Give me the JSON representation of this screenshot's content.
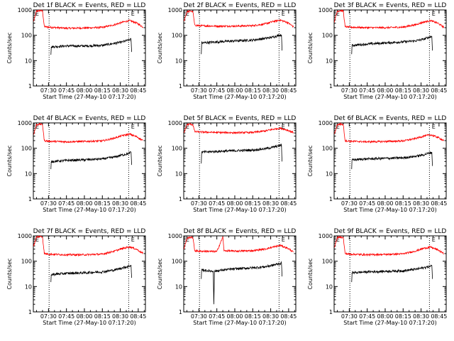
{
  "chart_data": {
    "type": "line",
    "layout": {
      "rows": 3,
      "cols": 3
    },
    "x_ticks": [
      "07:30",
      "07:45",
      "08:00",
      "08:15",
      "08:30",
      "08:45"
    ],
    "xlabel": "Start Time (27-May-10 07:17:20)",
    "ylabel": "Counts/sec",
    "yscale": "log",
    "ylim": [
      1,
      1000
    ],
    "y_ticks": [
      "1",
      "10",
      "100",
      "1000"
    ],
    "xlim_minutes_of_day": [
      437.33,
      531
    ],
    "vlines_minutes_of_day": [
      450.5,
      517
    ],
    "marker_text": "E",
    "marker_minutes_of_day": [
      439,
      519
    ],
    "series_colors": {
      "events": "#000000",
      "lld": "#ff0000"
    },
    "panels": [
      {
        "title": "Det 1f BLACK = Events, RED = LLD",
        "lld_curve": [
          [
            437.5,
            350
          ],
          [
            440,
            900
          ],
          [
            443,
            950
          ],
          [
            445,
            900
          ],
          [
            446.5,
            220
          ],
          [
            450,
            210
          ],
          [
            465,
            190
          ],
          [
            480,
            195
          ],
          [
            495,
            205
          ],
          [
            505,
            260
          ],
          [
            512,
            330
          ],
          [
            518,
            380
          ],
          [
            524,
            300
          ],
          [
            529,
            210
          ]
        ],
        "events_curve": [
          [
            452,
            17
          ],
          [
            452.3,
            35
          ],
          [
            465,
            38
          ],
          [
            480,
            38
          ],
          [
            495,
            40
          ],
          [
            505,
            48
          ],
          [
            512,
            55
          ],
          [
            517,
            65
          ],
          [
            519,
            70
          ],
          [
            519.5,
            22
          ]
        ]
      },
      {
        "title": "Det 2f BLACK = Events, RED = LLD",
        "lld_curve": [
          [
            437.5,
            350
          ],
          [
            440,
            850
          ],
          [
            443,
            900
          ],
          [
            445,
            850
          ],
          [
            446.5,
            250
          ],
          [
            450,
            240
          ],
          [
            465,
            230
          ],
          [
            480,
            230
          ],
          [
            495,
            240
          ],
          [
            505,
            280
          ],
          [
            512,
            350
          ],
          [
            518,
            400
          ],
          [
            524,
            320
          ],
          [
            529,
            220
          ]
        ],
        "events_curve": [
          [
            452,
            18
          ],
          [
            452.3,
            50
          ],
          [
            465,
            55
          ],
          [
            480,
            60
          ],
          [
            495,
            65
          ],
          [
            505,
            75
          ],
          [
            512,
            85
          ],
          [
            517,
            100
          ],
          [
            519,
            105
          ],
          [
            519.5,
            25
          ]
        ]
      },
      {
        "title": "Det 3f BLACK = Events, RED = LLD",
        "lld_curve": [
          [
            437.5,
            350
          ],
          [
            440,
            900
          ],
          [
            443,
            950
          ],
          [
            445,
            900
          ],
          [
            446.5,
            220
          ],
          [
            450,
            210
          ],
          [
            465,
            200
          ],
          [
            480,
            200
          ],
          [
            495,
            210
          ],
          [
            505,
            260
          ],
          [
            512,
            330
          ],
          [
            518,
            380
          ],
          [
            524,
            300
          ],
          [
            529,
            210
          ]
        ],
        "events_curve": [
          [
            452,
            18
          ],
          [
            452.3,
            40
          ],
          [
            465,
            45
          ],
          [
            480,
            50
          ],
          [
            495,
            55
          ],
          [
            505,
            60
          ],
          [
            512,
            70
          ],
          [
            517,
            85
          ],
          [
            519,
            90
          ],
          [
            519.5,
            25
          ]
        ]
      },
      {
        "title": "Det 4f BLACK = Events, RED = LLD",
        "lld_curve": [
          [
            437.5,
            350
          ],
          [
            440,
            850
          ],
          [
            443,
            900
          ],
          [
            445,
            850
          ],
          [
            446.5,
            200
          ],
          [
            450,
            190
          ],
          [
            465,
            180
          ],
          [
            480,
            185
          ],
          [
            495,
            195
          ],
          [
            505,
            250
          ],
          [
            512,
            320
          ],
          [
            518,
            360
          ],
          [
            524,
            280
          ],
          [
            529,
            200
          ]
        ],
        "events_curve": [
          [
            452,
            15
          ],
          [
            452.3,
            30
          ],
          [
            465,
            33
          ],
          [
            480,
            35
          ],
          [
            495,
            38
          ],
          [
            505,
            45
          ],
          [
            512,
            55
          ],
          [
            517,
            62
          ],
          [
            519,
            70
          ],
          [
            519.5,
            22
          ]
        ]
      },
      {
        "title": "Det 5f BLACK = Events, RED = LLD",
        "lld_curve": [
          [
            437.5,
            400
          ],
          [
            440,
            850
          ],
          [
            443,
            900
          ],
          [
            445,
            850
          ],
          [
            446.5,
            450
          ],
          [
            450,
            440
          ],
          [
            465,
            420
          ],
          [
            480,
            410
          ],
          [
            495,
            420
          ],
          [
            505,
            480
          ],
          [
            512,
            560
          ],
          [
            518,
            620
          ],
          [
            524,
            520
          ],
          [
            529,
            420
          ]
        ],
        "events_curve": [
          [
            452,
            25
          ],
          [
            452.3,
            70
          ],
          [
            465,
            75
          ],
          [
            480,
            80
          ],
          [
            495,
            85
          ],
          [
            505,
            95
          ],
          [
            512,
            110
          ],
          [
            517,
            125
          ],
          [
            519,
            135
          ],
          [
            519.5,
            30
          ]
        ]
      },
      {
        "title": "Det 6f BLACK = Events, RED = LLD",
        "lld_curve": [
          [
            437.5,
            350
          ],
          [
            440,
            850
          ],
          [
            443,
            900
          ],
          [
            445,
            850
          ],
          [
            446.5,
            200
          ],
          [
            450,
            190
          ],
          [
            465,
            180
          ],
          [
            480,
            185
          ],
          [
            495,
            195
          ],
          [
            505,
            240
          ],
          [
            512,
            300
          ],
          [
            518,
            340
          ],
          [
            524,
            270
          ],
          [
            529,
            200
          ]
        ],
        "events_curve": [
          [
            452,
            15
          ],
          [
            452.3,
            35
          ],
          [
            465,
            38
          ],
          [
            480,
            40
          ],
          [
            495,
            42
          ],
          [
            505,
            48
          ],
          [
            512,
            55
          ],
          [
            517,
            65
          ],
          [
            519,
            70
          ],
          [
            519.5,
            20
          ]
        ]
      },
      {
        "title": "Det 7f BLACK = Events, RED = LLD",
        "lld_curve": [
          [
            437.5,
            400
          ],
          [
            440,
            900
          ],
          [
            443,
            950
          ],
          [
            445,
            900
          ],
          [
            446.5,
            200
          ],
          [
            450,
            190
          ],
          [
            465,
            180
          ],
          [
            480,
            180
          ],
          [
            495,
            190
          ],
          [
            505,
            250
          ],
          [
            512,
            320
          ],
          [
            518,
            370
          ],
          [
            524,
            290
          ],
          [
            529,
            200
          ]
        ],
        "events_curve": [
          [
            452,
            15
          ],
          [
            452.3,
            30
          ],
          [
            465,
            33
          ],
          [
            480,
            35
          ],
          [
            495,
            38
          ],
          [
            505,
            45
          ],
          [
            512,
            55
          ],
          [
            517,
            62
          ],
          [
            519,
            68
          ],
          [
            519.5,
            22
          ]
        ]
      },
      {
        "title": "Det 8f BLACK = Events, RED = LLD",
        "lld_curve": [
          [
            437.5,
            300
          ],
          [
            440,
            800
          ],
          [
            443,
            900
          ],
          [
            445,
            850
          ],
          [
            446.5,
            260
          ],
          [
            450,
            250
          ],
          [
            465,
            240
          ],
          [
            470,
            900
          ],
          [
            471,
            260
          ],
          [
            480,
            250
          ],
          [
            495,
            260
          ],
          [
            505,
            300
          ],
          [
            512,
            360
          ],
          [
            518,
            420
          ],
          [
            524,
            330
          ],
          [
            529,
            230
          ]
        ],
        "events_curve": [
          [
            452,
            20
          ],
          [
            452.3,
            45
          ],
          [
            462,
            40
          ],
          [
            462.5,
            2
          ],
          [
            463,
            40
          ],
          [
            470,
            45
          ],
          [
            480,
            50
          ],
          [
            495,
            55
          ],
          [
            505,
            60
          ],
          [
            512,
            70
          ],
          [
            517,
            80
          ],
          [
            519,
            85
          ],
          [
            519.5,
            25
          ]
        ]
      },
      {
        "title": "Det 9f BLACK = Events, RED = LLD",
        "lld_curve": [
          [
            437.5,
            350
          ],
          [
            440,
            850
          ],
          [
            443,
            900
          ],
          [
            445,
            850
          ],
          [
            446.5,
            200
          ],
          [
            450,
            190
          ],
          [
            465,
            180
          ],
          [
            480,
            185
          ],
          [
            495,
            195
          ],
          [
            505,
            250
          ],
          [
            512,
            320
          ],
          [
            518,
            360
          ],
          [
            524,
            280
          ],
          [
            529,
            200
          ]
        ],
        "events_curve": [
          [
            452,
            15
          ],
          [
            452.3,
            35
          ],
          [
            465,
            38
          ],
          [
            480,
            40
          ],
          [
            495,
            42
          ],
          [
            505,
            48
          ],
          [
            512,
            55
          ],
          [
            517,
            62
          ],
          [
            519,
            68
          ],
          [
            519.5,
            20
          ]
        ]
      }
    ]
  }
}
